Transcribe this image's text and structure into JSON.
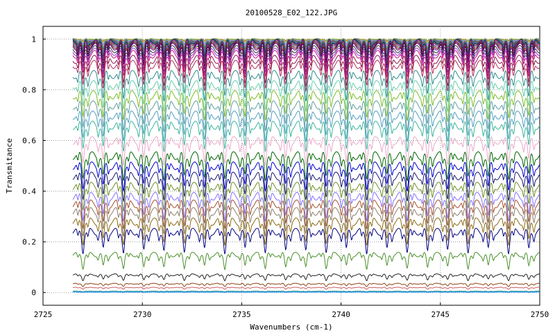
{
  "chart_data": {
    "type": "line",
    "title": "20100528_E02_122.JPG",
    "xlabel": "Wavenumbers (cm-1)",
    "ylabel": "Transmitance",
    "xlim": [
      2725,
      2750
    ],
    "ylim": [
      -0.05,
      1.05
    ],
    "x_range": [
      2726.5,
      2750
    ],
    "xticks": [
      2725,
      2730,
      2735,
      2740,
      2745,
      2750
    ],
    "yticks": [
      0,
      0.2,
      0.4,
      0.6,
      0.8,
      1
    ],
    "ytick_labels": [
      "0",
      "0.2",
      "0.4",
      "0.6",
      "0.8",
      "1"
    ],
    "grid": true,
    "legend": false,
    "line_period": 1.02,
    "series": [
      {
        "baseline": 1.0,
        "depth": 0.005,
        "color": "#777777"
      },
      {
        "baseline": 1.0,
        "depth": 0.008,
        "color": "#ff8c00"
      },
      {
        "baseline": 1.0,
        "depth": 0.012,
        "color": "#9acd32"
      },
      {
        "baseline": 0.998,
        "depth": 0.016,
        "color": "#1e90ff"
      },
      {
        "baseline": 0.997,
        "depth": 0.02,
        "color": "#ff69b4"
      },
      {
        "baseline": 0.996,
        "depth": 0.025,
        "color": "#20b2aa"
      },
      {
        "baseline": 0.995,
        "depth": 0.03,
        "color": "#8b4513"
      },
      {
        "baseline": 0.994,
        "depth": 0.035,
        "color": "#696969"
      },
      {
        "baseline": 0.993,
        "depth": 0.04,
        "color": "#6a5acd"
      },
      {
        "baseline": 0.992,
        "depth": 0.045,
        "color": "#2e8b57"
      },
      {
        "baseline": 0.99,
        "depth": 0.05,
        "color": "#000080"
      },
      {
        "baseline": 0.988,
        "depth": 0.055,
        "color": "#556b2f"
      },
      {
        "baseline": 0.985,
        "depth": 0.06,
        "color": "#8b008b"
      },
      {
        "baseline": 0.98,
        "depth": 0.065,
        "color": "#2f4f4f"
      },
      {
        "baseline": 0.975,
        "depth": 0.07,
        "color": "#800000"
      },
      {
        "baseline": 0.97,
        "depth": 0.075,
        "color": "#4b0082"
      },
      {
        "baseline": 0.96,
        "depth": 0.08,
        "color": "#333333"
      },
      {
        "baseline": 0.95,
        "depth": 0.08,
        "color": "#9932cc"
      },
      {
        "baseline": 0.94,
        "depth": 0.085,
        "color": "#c71585"
      },
      {
        "baseline": 0.92,
        "depth": 0.09,
        "color": "#8b1a4a"
      },
      {
        "baseline": 0.9,
        "depth": 0.09,
        "color": "#b03060"
      },
      {
        "baseline": 0.86,
        "depth": 0.09,
        "color": "#2e8b8b"
      },
      {
        "baseline": 0.82,
        "depth": 0.09,
        "color": "#66cdaa"
      },
      {
        "baseline": 0.78,
        "depth": 0.09,
        "color": "#7cba2a"
      },
      {
        "baseline": 0.74,
        "depth": 0.09,
        "color": "#5f9ea0"
      },
      {
        "baseline": 0.7,
        "depth": 0.09,
        "color": "#4f9fbf"
      },
      {
        "baseline": 0.66,
        "depth": 0.09,
        "color": "#3cb39a"
      },
      {
        "baseline": 0.6,
        "depth": 0.085,
        "color": "#e8a8c8"
      },
      {
        "baseline": 0.54,
        "depth": 0.085,
        "color": "#006400"
      },
      {
        "baseline": 0.5,
        "depth": 0.085,
        "color": "#0000cd"
      },
      {
        "baseline": 0.46,
        "depth": 0.085,
        "color": "#191970"
      },
      {
        "baseline": 0.42,
        "depth": 0.085,
        "color": "#6b8e23"
      },
      {
        "baseline": 0.38,
        "depth": 0.085,
        "color": "#8470ff"
      },
      {
        "baseline": 0.35,
        "depth": 0.085,
        "color": "#a0522d"
      },
      {
        "baseline": 0.32,
        "depth": 0.085,
        "color": "#8b7d6b"
      },
      {
        "baseline": 0.28,
        "depth": 0.08,
        "color": "#8b6914"
      },
      {
        "baseline": 0.24,
        "depth": 0.075,
        "color": "#000080"
      },
      {
        "baseline": 0.15,
        "depth": 0.05,
        "color": "#4a8f2a"
      },
      {
        "baseline": 0.07,
        "depth": 0.02,
        "color": "#222222"
      },
      {
        "baseline": 0.035,
        "depth": 0.01,
        "color": "#8b4513"
      },
      {
        "baseline": 0.02,
        "depth": 0.006,
        "color": "#cd5c5c"
      },
      {
        "baseline": 0.005,
        "depth": 0.002,
        "color": "#008080"
      },
      {
        "baseline": 0.002,
        "depth": 0.001,
        "color": "#1e90ff"
      }
    ]
  }
}
